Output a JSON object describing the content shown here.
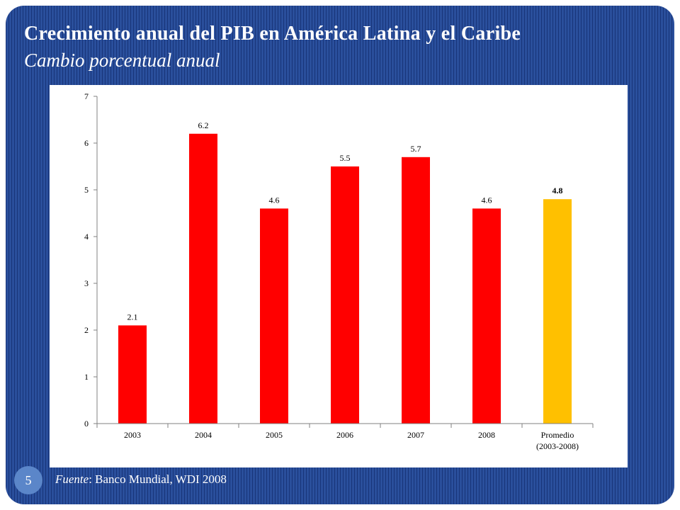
{
  "slide": {
    "title": "Crecimiento anual del PIB en América Latina y el Caribe",
    "subtitle": "Cambio porcentual anual",
    "page_number": "5",
    "source_label": "Fuente",
    "source_text": ": Banco Mundial, WDI 2008"
  },
  "chart_data": {
    "type": "bar",
    "title": "Crecimiento anual del PIB en América Latina y el Caribe",
    "subtitle": "Cambio porcentual anual",
    "xlabel": "",
    "ylabel": "",
    "categories": [
      "2003",
      "2004",
      "2005",
      "2006",
      "2007",
      "2008",
      "Promedio\n(2003-2008)"
    ],
    "values": [
      2.1,
      6.2,
      4.6,
      5.5,
      5.7,
      4.6,
      4.8
    ],
    "data_labels": [
      "2.1",
      "6.2",
      "4.6",
      "5.5",
      "5.7",
      "4.6",
      "4.8"
    ],
    "bar_colors": [
      "#ff0000",
      "#ff0000",
      "#ff0000",
      "#ff0000",
      "#ff0000",
      "#ff0000",
      "#ffc000"
    ],
    "highlight_label_bold": [
      false,
      false,
      false,
      false,
      false,
      false,
      true
    ],
    "ylim": [
      0,
      7
    ],
    "yticks": [
      "0",
      "1",
      "2",
      "3",
      "4",
      "5",
      "6",
      "7"
    ],
    "grid": false,
    "legend": "none",
    "colors": {
      "plot_background": "#ffffff",
      "axis": "#808080",
      "text": "#000000"
    }
  }
}
